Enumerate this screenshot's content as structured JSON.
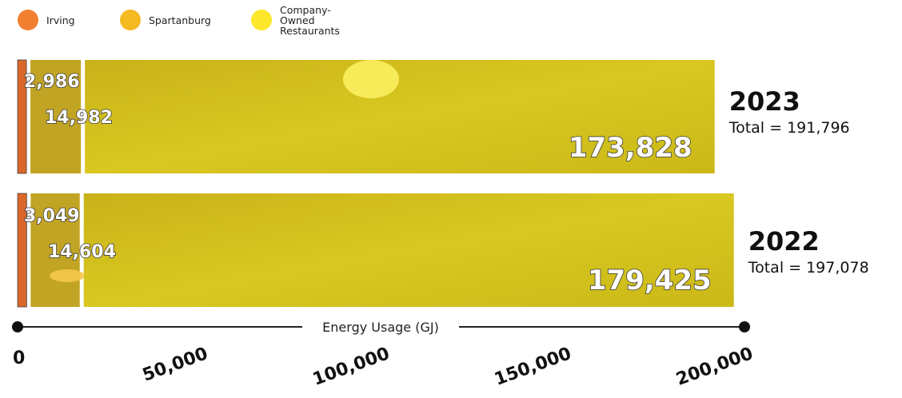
{
  "legend": [
    {
      "label": "Irving",
      "color": "#f08030"
    },
    {
      "label": "Spartanburg",
      "color": "#f5b921"
    },
    {
      "label": "Company-Owned Restaurants",
      "color": "#fde72a"
    }
  ],
  "chart_data": {
    "type": "bar",
    "orientation": "horizontal",
    "stacked": true,
    "categories": [
      "2023",
      "2022"
    ],
    "totals_labels": [
      "Total = 191,796",
      "Total = 197,078"
    ],
    "series": [
      {
        "name": "Irving",
        "values": [
          2986,
          3049
        ],
        "labels": [
          "2,986",
          "3,049"
        ],
        "color": "#d9672a"
      },
      {
        "name": "Spartanburg",
        "values": [
          14982,
          14604
        ],
        "labels": [
          "14,982",
          "14,604"
        ],
        "color": "#c2a424"
      },
      {
        "name": "Company-Owned Restaurants",
        "values": [
          173828,
          179425
        ],
        "labels": [
          "173,828",
          "179,425"
        ],
        "color": "#d3c214"
      }
    ],
    "xlabel": "Energy Usage (GJ)",
    "xlim": [
      0,
      200000
    ],
    "xticks": [
      0,
      50000,
      100000,
      150000,
      200000
    ],
    "xtick_labels": [
      "0",
      "50,000",
      "100,000",
      "150,000",
      "200,000"
    ],
    "legend_position": "top-left",
    "grid": false
  }
}
